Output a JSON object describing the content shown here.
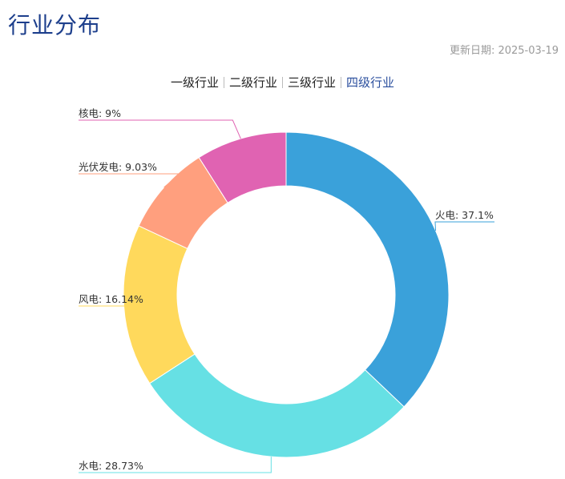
{
  "header": {
    "title": "行业分布",
    "update_date": "更新日期: 2025-03-19"
  },
  "tabs": [
    {
      "label": "一级行业",
      "active": false
    },
    {
      "label": "二级行业",
      "active": false
    },
    {
      "label": "三级行业",
      "active": false
    },
    {
      "label": "四级行业",
      "active": true
    }
  ],
  "chart_data": {
    "type": "pie",
    "style": "donut",
    "slices": [
      {
        "name": "火电",
        "value": 37.1,
        "label": "火电: 37.1%",
        "color": "#3aa1da"
      },
      {
        "name": "水电",
        "value": 28.73,
        "label": "水电: 28.73%",
        "color": "#66e0e4"
      },
      {
        "name": "风电",
        "value": 16.14,
        "label": "风电: 16.14%",
        "color": "#ffd95c"
      },
      {
        "name": "光伏发电",
        "value": 9.03,
        "label": "光伏发电: 9.03%",
        "color": "#ff9f7e"
      },
      {
        "name": "核电",
        "value": 9,
        "label": "核电: 9%",
        "color": "#e063b2"
      }
    ]
  }
}
